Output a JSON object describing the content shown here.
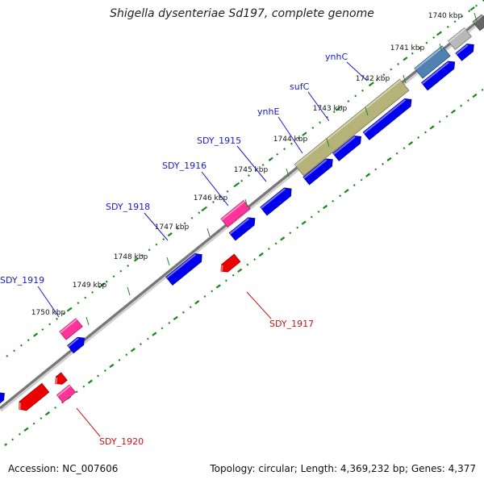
{
  "title": "Shigella dysenteriae Sd197, complete genome",
  "footer": {
    "accession": "Accession: NC_007606",
    "summary": "Topology: circular; Length: 4,369,232 bp; Genes: 4,377"
  },
  "ticks": [
    {
      "label": "1740 kbp"
    },
    {
      "label": "1741 kbp"
    },
    {
      "label": "1742 kbp"
    },
    {
      "label": "1743 kbp"
    },
    {
      "label": "1744 kbp"
    },
    {
      "label": "1745 kbp"
    },
    {
      "label": "1746 kbp"
    },
    {
      "label": "1747 kbp"
    },
    {
      "label": "1748 kbp"
    },
    {
      "label": "1749 kbp"
    },
    {
      "label": "1750 kbp"
    }
  ],
  "gene_labels": [
    {
      "name": "ynhC",
      "strand": "forward",
      "color": "#1a1acc"
    },
    {
      "name": "sufC",
      "strand": "forward",
      "color": "#1a1acc"
    },
    {
      "name": "ynhE",
      "strand": "forward",
      "color": "#1a1acc"
    },
    {
      "name": "SDY_1915",
      "strand": "forward",
      "color": "#1a1acc"
    },
    {
      "name": "SDY_1916",
      "strand": "forward",
      "color": "#1a1acc"
    },
    {
      "name": "SDY_1918",
      "strand": "forward",
      "color": "#1a1acc"
    },
    {
      "name": "SDY_1919",
      "strand": "forward",
      "color": "#1a1acc"
    },
    {
      "name": "SDY_1917",
      "strand": "reverse",
      "color": "#cc1111"
    },
    {
      "name": "SDY_1920",
      "strand": "reverse",
      "color": "#cc1111"
    }
  ],
  "colors": {
    "forward_cds": "#0000ee",
    "reverse_cds": "#ee0000",
    "pseudo": "#ff3399",
    "operon": "#b5b27a",
    "steelblue": "#4f81b3",
    "gray_feature": "#b8b8b8",
    "backbone": "#777777",
    "dots": "#1a8a1a"
  }
}
